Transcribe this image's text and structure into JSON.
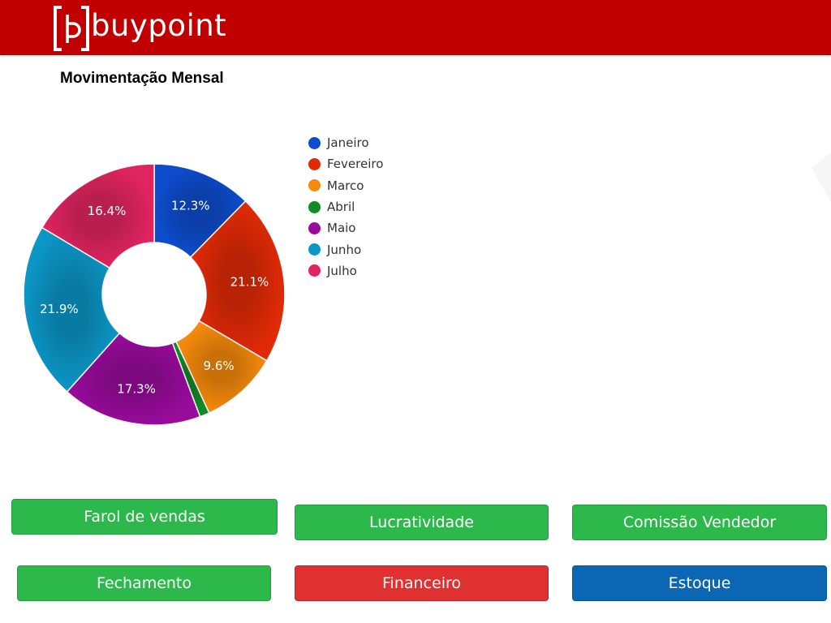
{
  "header": {
    "logo_text": "buypoint",
    "logo_icon": "bracket-b-logo-icon",
    "background": "#c00000"
  },
  "chart_data": {
    "type": "pie",
    "title": "Movimentação Mensal",
    "legend_position": "right",
    "categories": [
      "Janeiro",
      "Fevereiro",
      "Marco",
      "Abril",
      "Maio",
      "Junho",
      "Julho"
    ],
    "values": [
      12.3,
      21.1,
      9.6,
      1.2,
      17.3,
      21.9,
      16.4
    ],
    "labels": [
      "12.3%",
      "21.1%",
      "9.6%",
      "",
      "17.3%",
      "21.9%",
      "16.4%"
    ],
    "colors": [
      "#0d4ccd",
      "#e12a06",
      "#f58a0b",
      "#128a2a",
      "#980b9b",
      "#0b96c6",
      "#e0245f"
    ]
  },
  "buttons": [
    {
      "label": "Farol de vendas"
    },
    {
      "label": "Lucratividade"
    },
    {
      "label": "Comissão Vendedor"
    },
    {
      "label": "Fechamento"
    },
    {
      "label": "Financeiro"
    },
    {
      "label": "Estoque"
    }
  ]
}
